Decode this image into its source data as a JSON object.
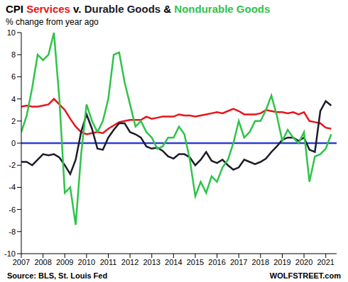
{
  "chart_data": {
    "type": "line",
    "title": "CPI Services v. Durable Goods & Nondurable Goods",
    "subtitle": "% change from year ago",
    "annotations": [
      "Source: BLS, St. Louis Fed",
      "WOLFSTREET.com"
    ],
    "x": [
      2007,
      2007.25,
      2007.5,
      2007.75,
      2008,
      2008.25,
      2008.5,
      2008.75,
      2009,
      2009.25,
      2009.5,
      2009.75,
      2010,
      2010.25,
      2010.5,
      2010.75,
      2011,
      2011.25,
      2011.5,
      2011.75,
      2012,
      2012.25,
      2012.5,
      2012.75,
      2013,
      2013.25,
      2013.5,
      2013.75,
      2014,
      2014.25,
      2014.5,
      2014.75,
      2015,
      2015.25,
      2015.5,
      2015.75,
      2016,
      2016.25,
      2016.5,
      2016.75,
      2017,
      2017.25,
      2017.5,
      2017.75,
      2018,
      2018.25,
      2018.5,
      2018.75,
      2019,
      2019.25,
      2019.5,
      2019.75,
      2020,
      2020.25,
      2020.5,
      2020.75,
      2021,
      2021.25
    ],
    "series": [
      {
        "name": "Services",
        "color": "#e8141c",
        "values": [
          3.3,
          3.4,
          3.3,
          3.3,
          3.4,
          3.5,
          4.0,
          3.5,
          3.0,
          2.2,
          1.5,
          1.0,
          0.8,
          0.9,
          1.0,
          0.9,
          1.3,
          1.6,
          1.9,
          2.0,
          2.1,
          2.1,
          2.1,
          2.4,
          2.2,
          2.3,
          2.4,
          2.4,
          2.4,
          2.6,
          2.5,
          2.5,
          2.4,
          2.5,
          2.6,
          2.7,
          2.8,
          2.7,
          2.9,
          3.1,
          2.9,
          2.6,
          2.6,
          2.6,
          2.7,
          3.0,
          2.9,
          2.8,
          2.8,
          2.7,
          2.8,
          2.6,
          2.8,
          2.0,
          1.9,
          1.8,
          1.4,
          1.3
        ]
      },
      {
        "name": "Durable Goods",
        "color": "#1c1c2a",
        "values": [
          -1.7,
          -1.7,
          -2.0,
          -1.5,
          -1.0,
          -1.1,
          -1.0,
          -1.3,
          -2.0,
          -2.8,
          -1.5,
          1.0,
          2.6,
          1.3,
          -0.5,
          -0.6,
          0.5,
          1.2,
          1.8,
          1.8,
          1.0,
          0.8,
          0.5,
          -0.3,
          -0.5,
          -0.4,
          -0.7,
          -1.2,
          -1.4,
          -1.0,
          -1.0,
          -1.3,
          -2.0,
          -1.5,
          -0.8,
          -1.6,
          -1.8,
          -1.5,
          -2.0,
          -2.4,
          -2.2,
          -1.5,
          -1.7,
          -1.9,
          -1.7,
          -1.4,
          -0.8,
          -0.3,
          0.3,
          0.5,
          0.5,
          0.2,
          0.5,
          -0.6,
          -0.8,
          2.9,
          3.8,
          3.4
        ]
      },
      {
        "name": "Nondurable Goods",
        "color": "#2fc34a",
        "values": [
          1.0,
          2.5,
          5.0,
          8.0,
          7.5,
          8.0,
          10.0,
          4.0,
          -4.5,
          -4.0,
          -7.4,
          -1.0,
          3.5,
          2.0,
          1.0,
          2.0,
          4.0,
          8.0,
          8.2,
          5.5,
          3.5,
          1.5,
          2.0,
          1.0,
          0.5,
          -0.5,
          -0.3,
          0.5,
          0.5,
          1.5,
          0.8,
          -1.5,
          -4.8,
          -3.5,
          -4.5,
          -3.0,
          -3.5,
          -2.2,
          -1.5,
          0.0,
          2.0,
          0.5,
          1.0,
          2.0,
          2.0,
          3.0,
          4.3,
          2.5,
          0.2,
          1.2,
          0.5,
          0.0,
          1.0,
          -3.5,
          -1.2,
          -1.0,
          -0.5,
          0.8
        ]
      }
    ],
    "xlim": [
      2007,
      2021.5
    ],
    "xticks": [
      2007,
      2008,
      2009,
      2010,
      2011,
      2012,
      2013,
      2014,
      2015,
      2016,
      2017,
      2018,
      2019,
      2020,
      2021
    ],
    "ylim": [
      -10,
      10
    ],
    "yticks": [
      -10,
      -8,
      -6,
      -4,
      -2,
      0,
      2,
      4,
      6,
      8,
      10
    ],
    "grid": false
  }
}
